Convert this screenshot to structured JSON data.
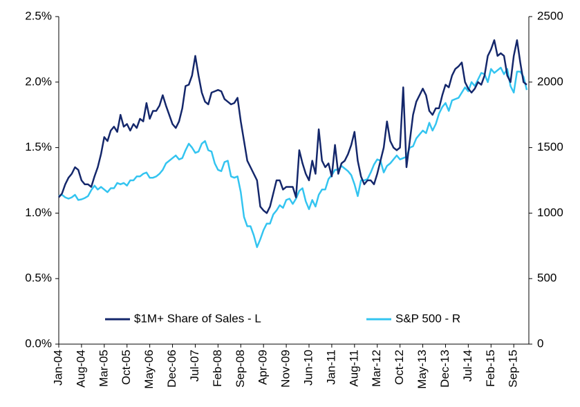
{
  "chart_data": {
    "type": "line",
    "categories": [
      "Jan-04",
      null,
      null,
      null,
      null,
      null,
      null,
      "Aug-04",
      null,
      null,
      null,
      null,
      null,
      null,
      "Mar-05",
      null,
      null,
      null,
      null,
      null,
      null,
      "Oct-05",
      null,
      null,
      null,
      null,
      null,
      null,
      "May-06",
      null,
      null,
      null,
      null,
      null,
      null,
      "Dec-06",
      null,
      null,
      null,
      null,
      null,
      null,
      "Jul-07",
      null,
      null,
      null,
      null,
      null,
      null,
      "Feb-08",
      null,
      null,
      null,
      null,
      null,
      null,
      "Sep-08",
      null,
      null,
      null,
      null,
      null,
      null,
      "Apr-09",
      null,
      null,
      null,
      null,
      null,
      null,
      "Nov-09",
      null,
      null,
      null,
      null,
      null,
      null,
      "Jun-10",
      null,
      null,
      null,
      null,
      null,
      null,
      "Jan-11",
      null,
      null,
      null,
      null,
      null,
      null,
      "Aug-11",
      null,
      null,
      null,
      null,
      null,
      null,
      "Mar-12",
      null,
      null,
      null,
      null,
      null,
      null,
      "Oct-12",
      null,
      null,
      null,
      null,
      null,
      null,
      "May-13",
      null,
      null,
      null,
      null,
      null,
      null,
      "Dec-13",
      null,
      null,
      null,
      null,
      null,
      null,
      "Jul-14",
      null,
      null,
      null,
      null,
      null,
      null,
      "Feb-15",
      null,
      null,
      null,
      null,
      null,
      null,
      "Sep-15",
      null,
      null,
      null,
      null
    ],
    "series": [
      {
        "name": "$1M+ Share of Sales - L",
        "color": "#14276b",
        "axis": "y",
        "values": [
          1.12,
          1.15,
          1.22,
          1.27,
          1.3,
          1.35,
          1.33,
          1.25,
          1.22,
          1.22,
          1.2,
          1.28,
          1.35,
          1.45,
          1.58,
          1.55,
          1.63,
          1.66,
          1.62,
          1.75,
          1.66,
          1.68,
          1.63,
          1.68,
          1.65,
          1.72,
          1.7,
          1.84,
          1.72,
          1.78,
          1.78,
          1.82,
          1.9,
          1.82,
          1.75,
          1.68,
          1.65,
          1.7,
          1.8,
          1.97,
          1.98,
          2.05,
          2.2,
          2.05,
          1.92,
          1.85,
          1.83,
          1.92,
          1.93,
          1.94,
          1.93,
          1.87,
          1.85,
          1.83,
          1.84,
          1.88,
          1.7,
          1.55,
          1.4,
          1.35,
          1.3,
          1.25,
          1.05,
          1.02,
          1.0,
          1.05,
          1.15,
          1.25,
          1.25,
          1.18,
          1.2,
          1.2,
          1.2,
          1.12,
          1.48,
          1.38,
          1.3,
          1.25,
          1.4,
          1.3,
          1.64,
          1.4,
          1.35,
          1.38,
          1.28,
          1.52,
          1.3,
          1.38,
          1.4,
          1.45,
          1.52,
          1.62,
          1.4,
          1.28,
          1.22,
          1.25,
          1.25,
          1.22,
          1.3,
          1.4,
          1.5,
          1.7,
          1.55,
          1.5,
          1.48,
          1.5,
          1.96,
          1.35,
          1.55,
          1.75,
          1.85,
          1.9,
          1.95,
          1.9,
          1.78,
          1.75,
          1.8,
          1.8,
          1.9,
          1.98,
          1.96,
          2.05,
          2.1,
          2.12,
          2.15,
          2.0,
          1.95,
          1.92,
          1.95,
          2.0,
          1.98,
          2.05,
          2.2,
          2.25,
          2.32,
          2.2,
          2.22,
          2.2,
          2.05,
          2.0,
          2.2,
          2.32,
          2.15,
          2.0,
          1.98
        ]
      },
      {
        "name": "S&P 500 - R",
        "color": "#33c4f0",
        "axis": "y2",
        "values": [
          1130,
          1140,
          1120,
          1110,
          1120,
          1140,
          1100,
          1105,
          1115,
          1130,
          1175,
          1210,
          1180,
          1200,
          1180,
          1160,
          1190,
          1190,
          1230,
          1220,
          1230,
          1210,
          1250,
          1250,
          1280,
          1280,
          1300,
          1310,
          1270,
          1270,
          1280,
          1300,
          1330,
          1380,
          1400,
          1420,
          1440,
          1410,
          1420,
          1480,
          1530,
          1500,
          1460,
          1470,
          1530,
          1550,
          1480,
          1470,
          1380,
          1330,
          1320,
          1390,
          1400,
          1280,
          1270,
          1280,
          1160,
          970,
          900,
          900,
          830,
          740,
          800,
          870,
          920,
          920,
          990,
          1020,
          1060,
          1040,
          1100,
          1110,
          1070,
          1110,
          1170,
          1190,
          1090,
          1030,
          1100,
          1050,
          1140,
          1180,
          1180,
          1260,
          1290,
          1330,
          1330,
          1360,
          1340,
          1320,
          1290,
          1220,
          1130,
          1250,
          1250,
          1260,
          1310,
          1370,
          1410,
          1400,
          1310,
          1360,
          1380,
          1410,
          1440,
          1410,
          1420,
          1430,
          1500,
          1510,
          1570,
          1600,
          1630,
          1610,
          1690,
          1630,
          1680,
          1760,
          1810,
          1840,
          1780,
          1860,
          1870,
          1880,
          1920,
          1960,
          1930,
          2000,
          1970,
          2020,
          2070,
          2060,
          2000,
          2100,
          2070,
          2090,
          2110,
          2060,
          2100,
          1970,
          1920,
          2080,
          2080,
          2040,
          1940
        ]
      }
    ],
    "ylim": [
      0,
      2.5
    ],
    "yticks": [
      {
        "value": 0,
        "label": "0.0%"
      },
      {
        "value": 0.5,
        "label": "0.5%"
      },
      {
        "value": 1,
        "label": "1.0%"
      },
      {
        "value": 1.5,
        "label": "1.5%"
      },
      {
        "value": 2,
        "label": "2.0%"
      },
      {
        "value": 2.5,
        "label": "2.5%"
      }
    ],
    "y2lim": [
      0,
      2500
    ],
    "y2ticks": [
      0,
      500,
      1000,
      1500,
      2000,
      2500
    ],
    "grid": false,
    "legend": "bottom"
  }
}
